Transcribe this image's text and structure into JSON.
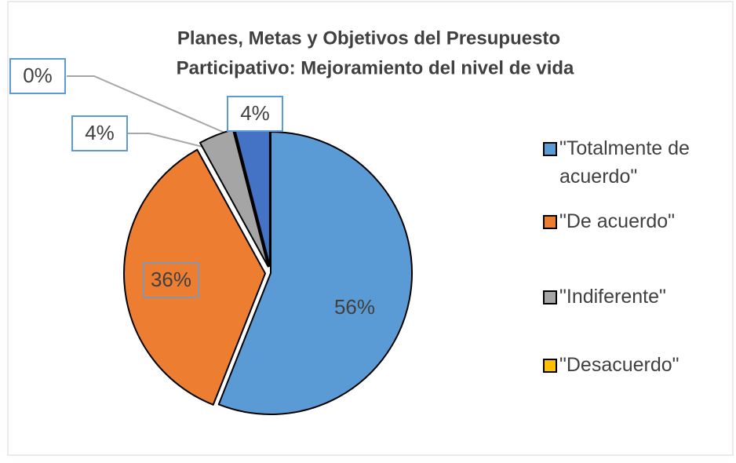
{
  "chart_data": {
    "type": "pie",
    "title": [
      "Planes, Metas y Objetivos del Presupuesto",
      "Participativo: Mejoramiento del nivel de vida"
    ],
    "categories": [
      "\"Totalmente de acuerdo\"",
      "\"De acuerdo\"",
      "\"Indiferente\"",
      "\"Desacuerdo\"",
      null
    ],
    "values": [
      56,
      36,
      4,
      0,
      4
    ],
    "value_labels": [
      "56%",
      "36%",
      "4%",
      "0%",
      "4%"
    ],
    "colors": [
      "#5b9bd5",
      "#ed7d31",
      "#a5a5a5",
      "#ffc000",
      "#4472c4"
    ],
    "legend": "right"
  }
}
